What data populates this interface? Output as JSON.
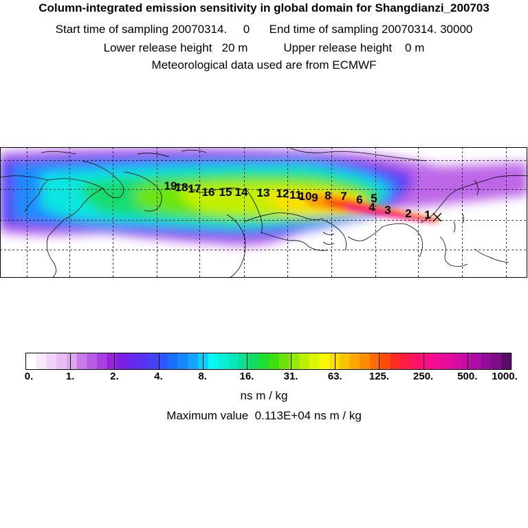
{
  "header": {
    "title": "Column-integrated emission sensitivity in global domain for Shangdianzi_200703",
    "line2": "Start time of sampling 20070314.     0      End time of sampling 20070314. 30000",
    "line3": "Lower release height   20 m           Upper release height    0 m",
    "line4": "Meteorological data used are from ECMWF"
  },
  "map": {
    "trajectory_labels": [
      "1",
      "2",
      "3",
      "4",
      "5",
      "6",
      "7",
      "8",
      "9",
      "10",
      "11",
      "12",
      "13",
      "14",
      "15",
      "16",
      "17",
      "18",
      "19"
    ],
    "station_marker": "x"
  },
  "colorbar": {
    "ticks": [
      "0.",
      "1.",
      "2.",
      "4.",
      "8.",
      "16.",
      "31.",
      "63.",
      "125.",
      "250.",
      "500.",
      "1000."
    ],
    "colors": [
      "#ffffff",
      "#f7e9fb",
      "#efd3f7",
      "#e7bdf3",
      "#dea6ee",
      "#c87be8",
      "#b85de4",
      "#a83fe0",
      "#9a22dc",
      "#7a1fe6",
      "#6a28ee",
      "#5a32f2",
      "#4640f6",
      "#2e56fa",
      "#1a70fe",
      "#1688fe",
      "#12a4fe",
      "#0ecdfe",
      "#08f6f6",
      "#0af0d8",
      "#0ae8b8",
      "#0ae090",
      "#10dc60",
      "#1ce030",
      "#3ce010",
      "#6ce408",
      "#94ea04",
      "#bcf000",
      "#dcf600",
      "#f8f800",
      "#fce000",
      "#fcc400",
      "#fca800",
      "#fc8c00",
      "#fc6c00",
      "#fc4c08",
      "#fc2c24",
      "#fc1c44",
      "#fc1464",
      "#fc0c84",
      "#f40c94",
      "#e80c9c",
      "#d80ca4",
      "#c40ca8",
      "#ac0ca8",
      "#940c98",
      "#7c0c88",
      "#5c0c68"
    ],
    "unit": "ns m / kg"
  },
  "footer": {
    "max_value": "Maximum value  0.113E+04 ns m / kg"
  }
}
